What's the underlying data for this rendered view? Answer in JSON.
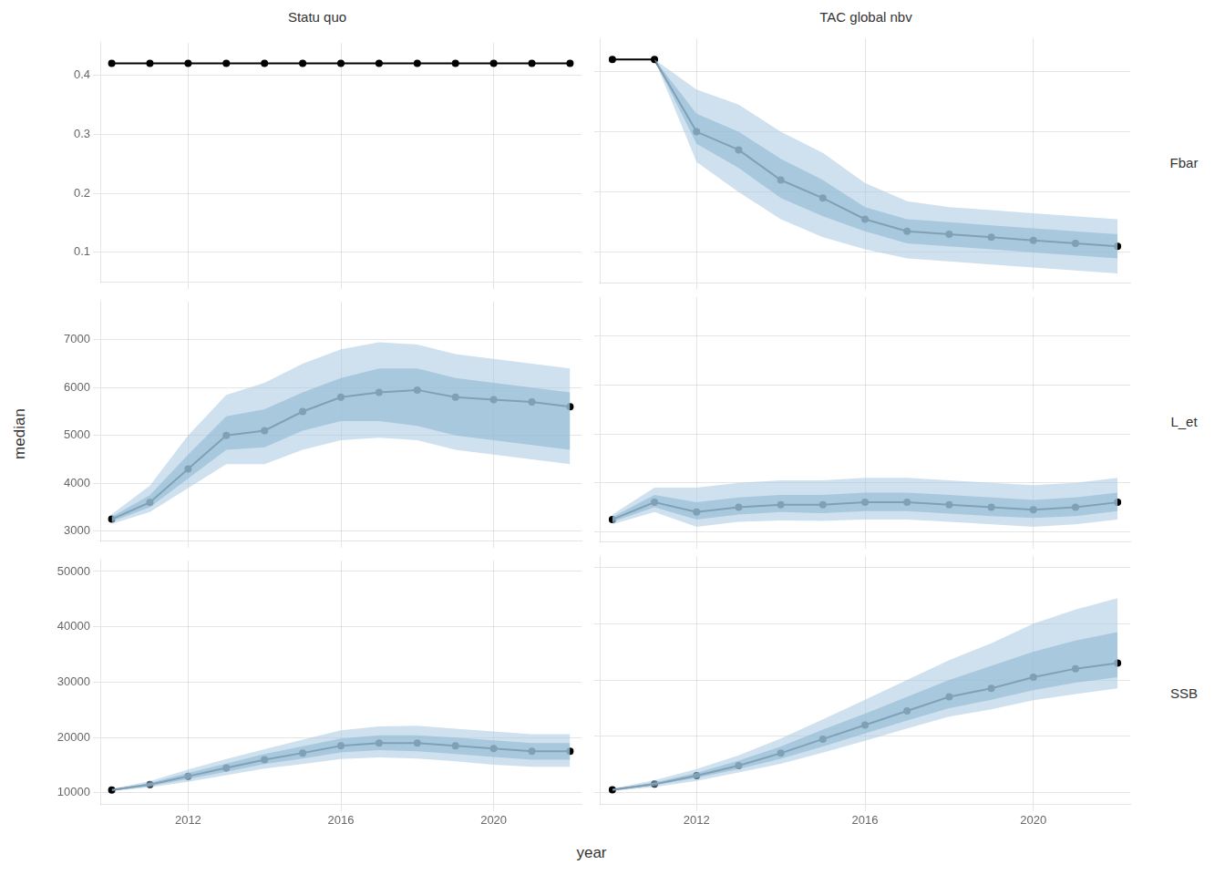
{
  "xlabel": "year",
  "ylabel": "median",
  "chart_data": [
    {
      "type": "line",
      "title": "Statu quo",
      "x": [
        2010,
        2011,
        2012,
        2013,
        2014,
        2015,
        2016,
        2017,
        2018,
        2019,
        2020,
        2021,
        2022
      ],
      "xlim": [
        2009.7,
        2022.3
      ],
      "xticks": [
        2012,
        2016,
        2020
      ],
      "ylim": [
        0.05,
        0.455
      ],
      "yticks": [
        0.1,
        0.2,
        0.3,
        0.4
      ],
      "grid": true,
      "tick_labels": "y",
      "series": [
        {
          "type": "band",
          "color": "#a8c8e0",
          "low": [
            0.42,
            0.42,
            0.42,
            0.42,
            0.42,
            0.42,
            0.42,
            0.42,
            0.42,
            0.42,
            0.42,
            0.42,
            0.42
          ],
          "high": [
            0.42,
            0.42,
            0.42,
            0.42,
            0.42,
            0.42,
            0.42,
            0.42,
            0.42,
            0.42,
            0.42,
            0.42,
            0.42
          ]
        },
        {
          "type": "band",
          "color": "#7aaac8",
          "low": [
            0.42,
            0.42,
            0.42,
            0.42,
            0.42,
            0.42,
            0.42,
            0.42,
            0.42,
            0.42,
            0.42,
            0.42,
            0.42
          ],
          "high": [
            0.42,
            0.42,
            0.42,
            0.42,
            0.42,
            0.42,
            0.42,
            0.42,
            0.42,
            0.42,
            0.42,
            0.42,
            0.42
          ]
        },
        {
          "type": "line",
          "color": "black",
          "marker": "o",
          "values": [
            0.42,
            0.42,
            0.42,
            0.42,
            0.42,
            0.42,
            0.42,
            0.42,
            0.42,
            0.42,
            0.42,
            0.42,
            0.42
          ]
        }
      ]
    },
    {
      "type": "line",
      "title": "TAC global nbv",
      "annotations": [
        {
          "text": "Fbar"
        }
      ],
      "x": [
        2010,
        2011,
        2012,
        2013,
        2014,
        2015,
        2016,
        2017,
        2018,
        2019,
        2020,
        2021,
        2022
      ],
      "xlim": [
        2009.7,
        2022.3
      ],
      "xticks": [
        2012,
        2016,
        2020
      ],
      "ylim": [
        0.05,
        0.455
      ],
      "yticks": [
        0.1,
        0.2,
        0.3,
        0.4
      ],
      "grid": true,
      "tick_labels": false,
      "series": [
        {
          "type": "band",
          "color": "#a8c8e0",
          "low": [
            0.42,
            0.42,
            0.25,
            0.2,
            0.155,
            0.125,
            0.105,
            0.09,
            0.085,
            0.08,
            0.075,
            0.07,
            0.065
          ],
          "high": [
            0.42,
            0.42,
            0.37,
            0.345,
            0.3,
            0.265,
            0.215,
            0.185,
            0.175,
            0.17,
            0.165,
            0.16,
            0.155
          ]
        },
        {
          "type": "band",
          "color": "#7aaac8",
          "low": [
            0.42,
            0.42,
            0.28,
            0.24,
            0.19,
            0.16,
            0.135,
            0.115,
            0.11,
            0.105,
            0.1,
            0.095,
            0.09
          ],
          "high": [
            0.42,
            0.42,
            0.33,
            0.3,
            0.255,
            0.22,
            0.175,
            0.155,
            0.15,
            0.145,
            0.14,
            0.135,
            0.13
          ]
        },
        {
          "type": "line",
          "color": "black",
          "marker": "o",
          "values": [
            0.42,
            0.42,
            0.3,
            0.27,
            0.22,
            0.19,
            0.155,
            0.135,
            0.13,
            0.125,
            0.12,
            0.115,
            0.11
          ]
        }
      ]
    },
    {
      "type": "line",
      "x": [
        2010,
        2011,
        2012,
        2013,
        2014,
        2015,
        2016,
        2017,
        2018,
        2019,
        2020,
        2021,
        2022
      ],
      "xlim": [
        2009.7,
        2022.3
      ],
      "xticks": [
        2012,
        2016,
        2020
      ],
      "ylim": [
        2800,
        7800
      ],
      "yticks": [
        3000,
        4000,
        5000,
        6000,
        7000
      ],
      "grid": true,
      "tick_labels": "y",
      "series": [
        {
          "type": "band",
          "color": "#a8c8e0",
          "low": [
            3150,
            3400,
            3900,
            4400,
            4400,
            4700,
            4900,
            4950,
            4900,
            4700,
            4600,
            4500,
            4400
          ],
          "high": [
            3350,
            3950,
            5000,
            5850,
            6100,
            6500,
            6800,
            6950,
            6900,
            6700,
            6600,
            6500,
            6400
          ]
        },
        {
          "type": "band",
          "color": "#7aaac8",
          "low": [
            3200,
            3500,
            4100,
            4700,
            4750,
            5100,
            5300,
            5300,
            5200,
            5000,
            4900,
            4800,
            4700
          ],
          "high": [
            3300,
            3750,
            4600,
            5400,
            5550,
            5900,
            6200,
            6400,
            6400,
            6200,
            6100,
            6000,
            5900
          ]
        },
        {
          "type": "line",
          "color": "black",
          "marker": "o",
          "values": [
            3250,
            3600,
            4300,
            5000,
            5100,
            5500,
            5800,
            5900,
            5950,
            5800,
            5750,
            5700,
            5600
          ]
        }
      ]
    },
    {
      "type": "line",
      "annotations": [
        {
          "text": "L_et"
        }
      ],
      "x": [
        2010,
        2011,
        2012,
        2013,
        2014,
        2015,
        2016,
        2017,
        2018,
        2019,
        2020,
        2021,
        2022
      ],
      "xlim": [
        2009.7,
        2022.3
      ],
      "xticks": [
        2012,
        2016,
        2020
      ],
      "ylim": [
        2800,
        7800
      ],
      "yticks": [
        3000,
        4000,
        5000,
        6000,
        7000
      ],
      "grid": true,
      "tick_labels": false,
      "series": [
        {
          "type": "band",
          "color": "#a8c8e0",
          "low": [
            3150,
            3400,
            3100,
            3200,
            3230,
            3220,
            3250,
            3250,
            3200,
            3150,
            3100,
            3150,
            3250
          ],
          "high": [
            3350,
            3900,
            3900,
            4000,
            4050,
            4050,
            4100,
            4100,
            4050,
            4000,
            3950,
            4000,
            4100
          ]
        },
        {
          "type": "band",
          "color": "#7aaac8",
          "low": [
            3200,
            3500,
            3250,
            3350,
            3400,
            3380,
            3420,
            3420,
            3370,
            3320,
            3280,
            3320,
            3420
          ],
          "high": [
            3300,
            3750,
            3600,
            3700,
            3750,
            3750,
            3800,
            3800,
            3750,
            3700,
            3650,
            3700,
            3800
          ]
        },
        {
          "type": "line",
          "color": "black",
          "marker": "o",
          "values": [
            3250,
            3600,
            3400,
            3500,
            3550,
            3550,
            3600,
            3600,
            3550,
            3500,
            3450,
            3500,
            3600
          ]
        }
      ]
    },
    {
      "type": "line",
      "x": [
        2010,
        2011,
        2012,
        2013,
        2014,
        2015,
        2016,
        2017,
        2018,
        2019,
        2020,
        2021,
        2022
      ],
      "xlim": [
        2009.7,
        2022.3
      ],
      "xticks": [
        2012,
        2016,
        2020
      ],
      "ylim": [
        8000,
        52000
      ],
      "yticks": [
        10000,
        20000,
        30000,
        40000,
        50000
      ],
      "grid": true,
      "series": [
        {
          "type": "band",
          "color": "#a8c8e0",
          "low": [
            10300,
            11000,
            12000,
            13200,
            14400,
            15200,
            16100,
            16400,
            16200,
            15700,
            15100,
            14700,
            14700
          ],
          "high": [
            10700,
            12100,
            14200,
            16100,
            17900,
            19600,
            21300,
            22000,
            22100,
            21600,
            21100,
            20600,
            20600
          ]
        },
        {
          "type": "band",
          "color": "#7aaac8",
          "low": [
            10400,
            11200,
            12500,
            13800,
            15200,
            16200,
            17300,
            17700,
            17500,
            17000,
            16500,
            16000,
            16000
          ],
          "high": [
            10600,
            11800,
            13600,
            15300,
            17000,
            18400,
            19800,
            20400,
            20400,
            20000,
            19500,
            19000,
            19000
          ]
        },
        {
          "type": "line",
          "color": "black",
          "marker": "o",
          "values": [
            10500,
            11500,
            13000,
            14500,
            16000,
            17200,
            18500,
            19000,
            19000,
            18500,
            18000,
            17500,
            17500
          ]
        }
      ]
    },
    {
      "type": "line",
      "annotations": [
        {
          "text": "SSB"
        }
      ],
      "x": [
        2010,
        2011,
        2012,
        2013,
        2014,
        2015,
        2016,
        2017,
        2018,
        2019,
        2020,
        2021,
        2022
      ],
      "xlim": [
        2009.7,
        2022.3
      ],
      "xticks": [
        2012,
        2016,
        2020
      ],
      "ylim": [
        8000,
        52000
      ],
      "yticks": [
        10000,
        20000,
        30000,
        40000,
        50000
      ],
      "grid": true,
      "tick_labels": "x",
      "series": [
        {
          "type": "band",
          "color": "#a8c8e0",
          "low": [
            10300,
            11000,
            12100,
            13600,
            15100,
            17100,
            19200,
            21400,
            23500,
            24800,
            26400,
            27500,
            28500
          ],
          "high": [
            10700,
            12200,
            14200,
            16600,
            19600,
            23000,
            26500,
            30000,
            33500,
            36500,
            40000,
            42500,
            44500
          ]
        },
        {
          "type": "band",
          "color": "#7aaac8",
          "low": [
            10400,
            11300,
            12600,
            14200,
            16000,
            18200,
            20500,
            22800,
            25000,
            26500,
            28200,
            29500,
            30500
          ],
          "high": [
            10600,
            11800,
            13500,
            15700,
            18200,
            21200,
            24000,
            27000,
            30000,
            32500,
            35000,
            37000,
            38500
          ]
        },
        {
          "type": "line",
          "color": "black",
          "marker": "o",
          "values": [
            10500,
            11500,
            13000,
            14800,
            17000,
            19500,
            22000,
            24500,
            27000,
            28500,
            30500,
            32000,
            33000
          ]
        }
      ]
    }
  ]
}
